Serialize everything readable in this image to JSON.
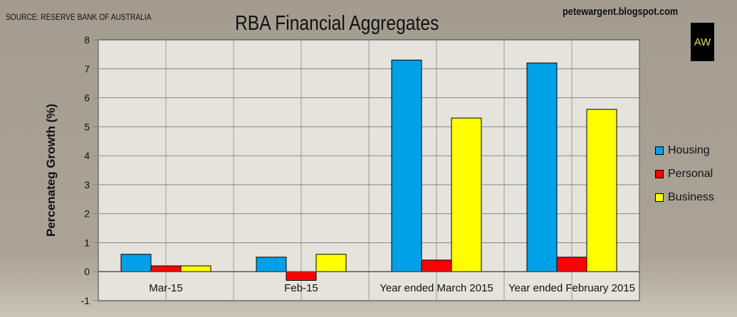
{
  "source": "SOURCE: RESERVE BANK OF AUSTRALIA",
  "blog": "petewargent.blogspot.com",
  "logo_text": "AW",
  "chart_data": {
    "type": "bar",
    "title": "RBA Financial Aggregates",
    "xlabel": "",
    "ylabel": "Percenateg Growth (%)",
    "ylim": [
      -1,
      8
    ],
    "yticks": [
      -1,
      0,
      1,
      2,
      3,
      4,
      5,
      6,
      7,
      8
    ],
    "categories": [
      "Mar-15",
      "Feb-15",
      "Year ended March 2015",
      "Year ended February 2015"
    ],
    "series": [
      {
        "name": "Housing",
        "color": "#00a0e6",
        "values": [
          0.6,
          0.5,
          7.3,
          7.2
        ]
      },
      {
        "name": "Personal",
        "color": "#ff0000",
        "values": [
          0.2,
          -0.3,
          0.4,
          0.5
        ]
      },
      {
        "name": "Business",
        "color": "#ffff00",
        "values": [
          0.2,
          0.6,
          5.3,
          5.6
        ]
      }
    ],
    "grid": true,
    "legend": "right"
  }
}
